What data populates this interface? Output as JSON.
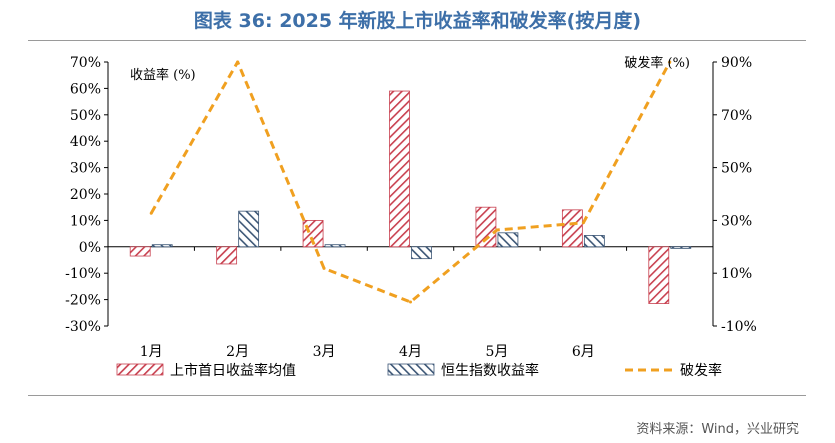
{
  "title": "图表 36: 2025 年新股上市收益率和破发率(按月度)",
  "source": "资料来源：Wind，兴业研究",
  "colors": {
    "title": "#3d6fa8",
    "series1": "#c8404f",
    "series2": "#3b5575",
    "line": "#f0a020"
  },
  "chart_data": {
    "type": "bar",
    "categories": [
      "1月",
      "2月",
      "3月",
      "4月",
      "5月",
      "6月",
      ""
    ],
    "series": [
      {
        "name": "上市首日收益率均值",
        "type": "bar",
        "axis": "left",
        "values": [
          -3.5,
          -6.5,
          10,
          59,
          15,
          14,
          -21.5
        ]
      },
      {
        "name": "恒生指数收益率",
        "type": "bar",
        "axis": "left",
        "values": [
          0.8,
          13.5,
          0.8,
          -4.5,
          5.3,
          4.3,
          -0.6
        ]
      },
      {
        "name": "破发率",
        "type": "line",
        "axis": "right",
        "values": [
          37,
          100,
          14,
          0,
          30,
          33,
          100
        ]
      }
    ],
    "ylabel_left": "收益率 (%)",
    "ylabel_right": "破发率 (%)",
    "ylim_left": [
      -30,
      70
    ],
    "yticks_left": [
      "-30%",
      "-20%",
      "-10%",
      "0%",
      "10%",
      "20%",
      "30%",
      "40%",
      "50%",
      "60%",
      "70%"
    ],
    "ylim_right": [
      -10,
      100
    ],
    "yticks_right": [
      "-10%",
      "10%",
      "30%",
      "50%",
      "70%",
      "90%"
    ],
    "legend_position": "bottom",
    "grid": false
  }
}
